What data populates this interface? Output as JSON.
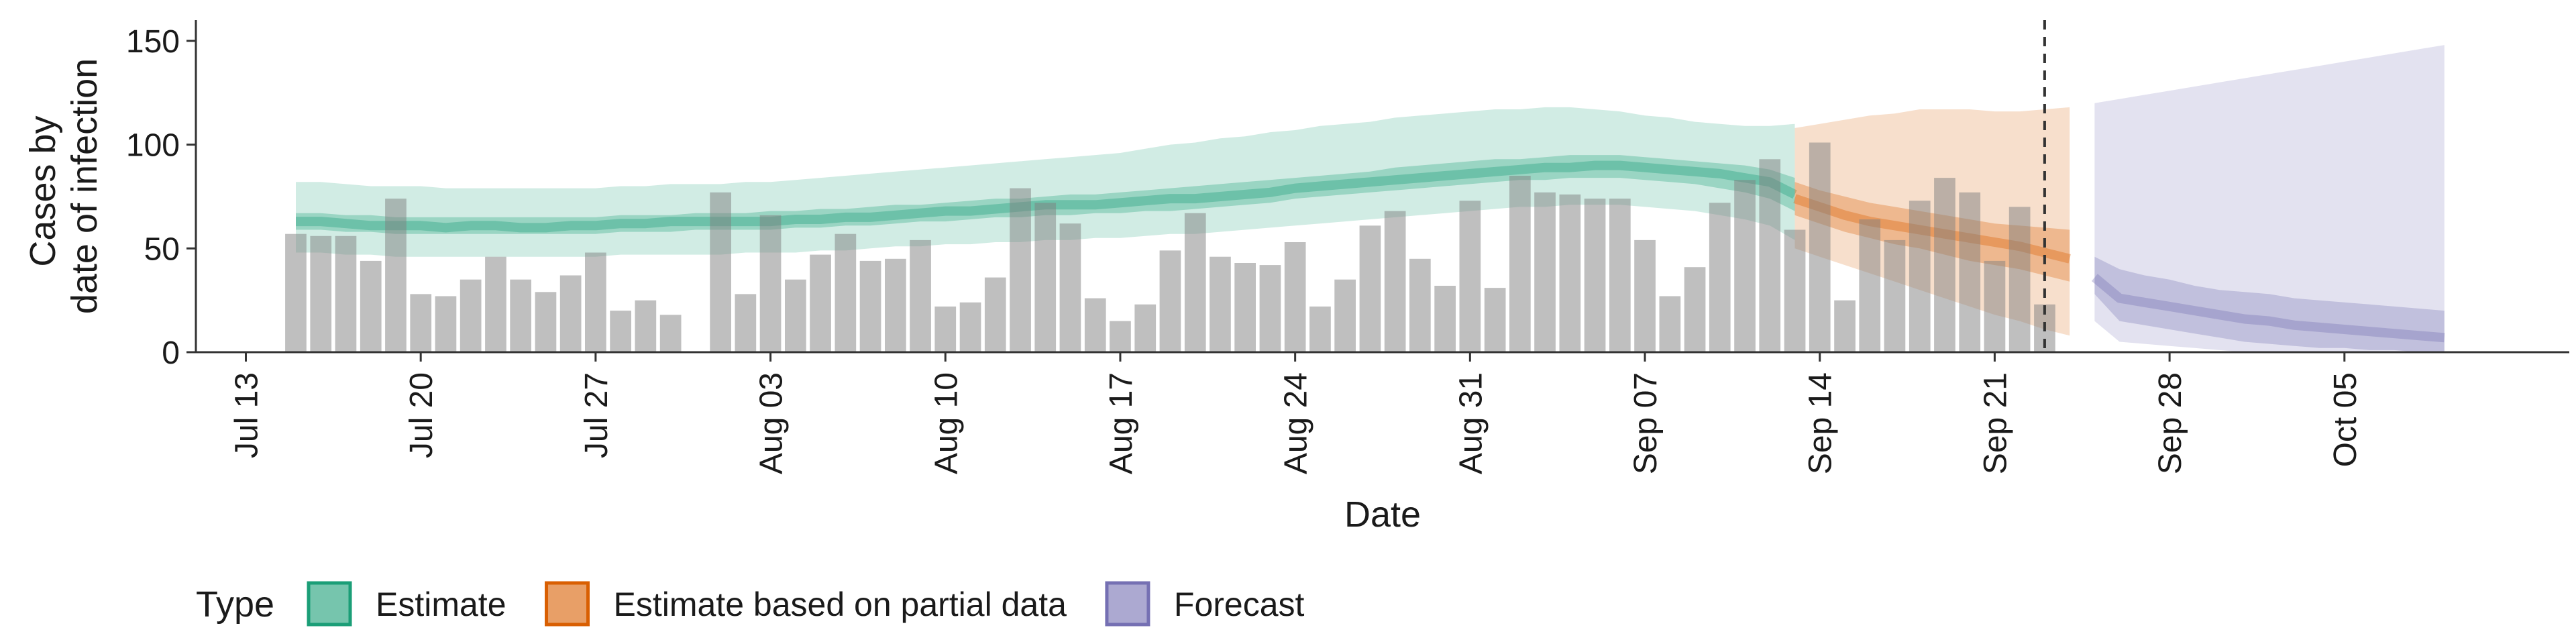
{
  "chart_data": {
    "type": "bar",
    "xlabel": "Date",
    "ylabel_lines": [
      "Cases by",
      "date of infection"
    ],
    "ylim": [
      0,
      160
    ],
    "yticks": [
      0,
      50,
      100,
      150
    ],
    "xlim": [
      "2020-07-11",
      "2020-10-14"
    ],
    "xticks": [
      {
        "date": "2020-07-13",
        "label": "Jul 13"
      },
      {
        "date": "2020-07-20",
        "label": "Jul 20"
      },
      {
        "date": "2020-07-27",
        "label": "Jul 27"
      },
      {
        "date": "2020-08-03",
        "label": "Aug 03"
      },
      {
        "date": "2020-08-10",
        "label": "Aug 10"
      },
      {
        "date": "2020-08-17",
        "label": "Aug 17"
      },
      {
        "date": "2020-08-24",
        "label": "Aug 24"
      },
      {
        "date": "2020-08-31",
        "label": "Aug 31"
      },
      {
        "date": "2020-09-07",
        "label": "Sep 07"
      },
      {
        "date": "2020-09-14",
        "label": "Sep 14"
      },
      {
        "date": "2020-09-21",
        "label": "Sep 21"
      },
      {
        "date": "2020-09-28",
        "label": "Sep 28"
      },
      {
        "date": "2020-10-05",
        "label": "Oct 05"
      }
    ],
    "cutoff_date": "2020-09-23",
    "bars": {
      "start_date": "2020-07-15",
      "values": [
        57,
        56,
        56,
        44,
        74,
        28,
        27,
        35,
        46,
        35,
        29,
        37,
        48,
        20,
        25,
        18,
        null,
        77,
        28,
        66,
        35,
        47,
        57,
        44,
        45,
        54,
        22,
        24,
        36,
        79,
        72,
        62,
        26,
        15,
        23,
        49,
        67,
        46,
        43,
        42,
        53,
        22,
        35,
        61,
        68,
        45,
        32,
        73,
        31,
        85,
        77,
        76,
        74,
        74,
        54,
        27,
        41,
        72,
        83,
        93,
        59,
        101,
        25,
        64,
        54,
        73,
        84,
        77,
        44,
        70,
        23
      ]
    },
    "series": [
      {
        "name": "Estimate",
        "color": "#1b9e77",
        "start_date": "2020-07-15",
        "median": [
          63,
          63,
          62,
          61,
          61,
          61,
          60,
          61,
          61,
          60,
          60,
          61,
          61,
          62,
          62,
          63,
          63,
          63,
          63,
          63,
          64,
          64,
          65,
          65,
          66,
          67,
          68,
          68,
          69,
          70,
          71,
          71,
          71,
          72,
          73,
          74,
          74,
          75,
          76,
          77,
          79,
          80,
          81,
          82,
          83,
          84,
          85,
          86,
          87,
          88,
          89,
          89,
          90,
          90,
          89,
          88,
          87,
          86,
          84,
          82,
          76
        ],
        "lower50": [
          59,
          59,
          58,
          58,
          57,
          57,
          57,
          57,
          57,
          57,
          57,
          57,
          57,
          58,
          58,
          58,
          59,
          59,
          59,
          59,
          60,
          60,
          61,
          61,
          62,
          63,
          63,
          64,
          65,
          65,
          66,
          66,
          67,
          67,
          68,
          68,
          69,
          70,
          71,
          72,
          74,
          75,
          76,
          77,
          78,
          79,
          80,
          81,
          82,
          83,
          83,
          84,
          84,
          84,
          83,
          82,
          81,
          79,
          77,
          74,
          68
        ],
        "upper50": [
          67,
          67,
          66,
          66,
          65,
          65,
          65,
          65,
          65,
          65,
          65,
          65,
          65,
          66,
          66,
          66,
          67,
          67,
          67,
          68,
          68,
          69,
          69,
          70,
          71,
          71,
          72,
          73,
          74,
          74,
          75,
          76,
          76,
          77,
          78,
          79,
          80,
          81,
          82,
          83,
          84,
          85,
          86,
          87,
          89,
          90,
          91,
          92,
          93,
          93,
          94,
          95,
          95,
          95,
          94,
          93,
          92,
          91,
          90,
          88,
          84
        ],
        "lower90": [
          48,
          48,
          47,
          47,
          46,
          46,
          46,
          46,
          46,
          46,
          46,
          46,
          46,
          47,
          47,
          47,
          47,
          47,
          48,
          48,
          48,
          49,
          49,
          50,
          51,
          51,
          52,
          52,
          53,
          53,
          54,
          54,
          55,
          55,
          56,
          57,
          57,
          58,
          59,
          60,
          61,
          62,
          63,
          64,
          65,
          66,
          67,
          68,
          69,
          70,
          70,
          71,
          71,
          71,
          70,
          69,
          68,
          66,
          64,
          61,
          54
        ],
        "upper90": [
          82,
          82,
          81,
          80,
          80,
          80,
          79,
          79,
          79,
          79,
          79,
          79,
          79,
          80,
          80,
          81,
          81,
          81,
          82,
          82,
          83,
          84,
          85,
          86,
          87,
          88,
          89,
          90,
          91,
          92,
          93,
          94,
          95,
          96,
          98,
          100,
          101,
          103,
          104,
          106,
          107,
          109,
          110,
          111,
          113,
          114,
          115,
          116,
          117,
          117,
          118,
          118,
          117,
          116,
          114,
          113,
          111,
          110,
          109,
          109,
          110
        ]
      },
      {
        "name": "Estimate based on partial data",
        "color": "#d95f02",
        "start_date": "2020-09-13",
        "median": [
          74,
          70,
          66,
          63,
          61,
          59,
          57,
          55,
          53,
          51,
          48,
          45
        ],
        "lower50": [
          66,
          62,
          58,
          55,
          52,
          50,
          47,
          44,
          42,
          40,
          37,
          34
        ],
        "upper50": [
          82,
          78,
          75,
          72,
          70,
          68,
          66,
          64,
          62,
          61,
          60,
          59
        ],
        "lower90": [
          50,
          46,
          42,
          38,
          34,
          30,
          26,
          22,
          18,
          15,
          11,
          8
        ],
        "upper90": [
          108,
          110,
          112,
          114,
          115,
          117,
          117,
          117,
          116,
          116,
          117,
          118
        ]
      },
      {
        "name": "Forecast",
        "color": "#7570b3",
        "start_date": "2020-09-25",
        "median": [
          36,
          26,
          24,
          22,
          20,
          18,
          16,
          15,
          13,
          12,
          11,
          10,
          9,
          8,
          7
        ],
        "lower50": [
          28,
          15,
          13,
          11,
          9,
          7,
          5,
          4,
          3,
          2,
          2,
          1,
          1,
          0,
          0
        ],
        "upper50": [
          46,
          40,
          37,
          35,
          32,
          30,
          29,
          28,
          26,
          25,
          24,
          23,
          22,
          21,
          20
        ],
        "lower90": [
          15,
          5,
          4,
          3,
          2,
          1,
          0,
          0,
          0,
          0,
          0,
          0,
          0,
          0,
          0
        ],
        "upper90": [
          120,
          122,
          124,
          126,
          128,
          130,
          132,
          134,
          136,
          138,
          140,
          142,
          144,
          146,
          148
        ]
      }
    ],
    "legend": {
      "title": "Type",
      "position": "bottom",
      "items": [
        {
          "label": "Estimate",
          "color": "#1b9e77"
        },
        {
          "label": "Estimate based on partial data",
          "color": "#d95f02"
        },
        {
          "label": "Forecast",
          "color": "#7570b3"
        }
      ]
    },
    "grid": false
  }
}
